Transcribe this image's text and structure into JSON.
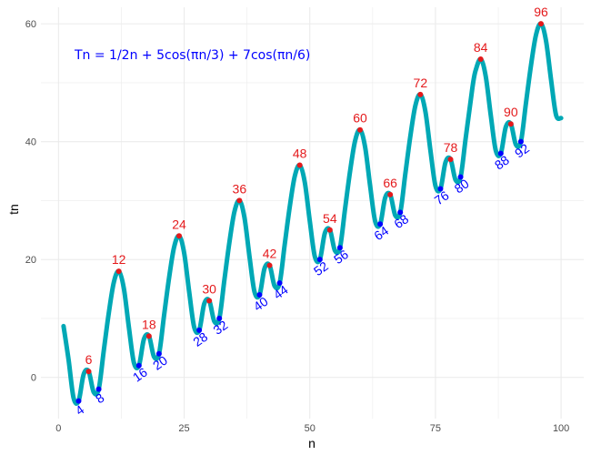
{
  "chart_data": {
    "type": "line",
    "title": "",
    "formula_text": "Tn = 1/2n + 5cos(πn/3) + 7cos(πn/6)",
    "xlabel": "n",
    "ylabel": "tn",
    "xlim": [
      1,
      100
    ],
    "ylim": [
      -5,
      60
    ],
    "x_ticks": [
      0,
      25,
      50,
      75,
      100
    ],
    "y_ticks": [
      0,
      20,
      40,
      60
    ],
    "grid": true,
    "colors": {
      "line": "#00A8B5",
      "max": "#E41A1C",
      "min": "#0000FF",
      "formula": "#0000FF",
      "grid": "#EBEBEB"
    },
    "series": [
      {
        "x": [
          1,
          2,
          3,
          4,
          5,
          6,
          7,
          8,
          9,
          10,
          11,
          12,
          13,
          14,
          15,
          16,
          17,
          18,
          19,
          20,
          21,
          22,
          23,
          24,
          25,
          26,
          27,
          28,
          29,
          30,
          31,
          32,
          33,
          34,
          35,
          36,
          37,
          38,
          39,
          40,
          41,
          42,
          43,
          44,
          45,
          46,
          47,
          48,
          49,
          50,
          51,
          52,
          53,
          54,
          55,
          56,
          57,
          58,
          59,
          60,
          61,
          62,
          63,
          64,
          65,
          66,
          67,
          68,
          69,
          70,
          71,
          72,
          73,
          74,
          75,
          76,
          77,
          78,
          79,
          80,
          81,
          82,
          82.5,
          83,
          84,
          85,
          86,
          87,
          88,
          89,
          90,
          91,
          92,
          93,
          94,
          95,
          96,
          97,
          98,
          99,
          100
        ],
        "y": [
          8.7,
          3.0,
          -3.5,
          -4.0,
          0.5,
          1.0,
          -2.5,
          -2.0,
          4.5,
          10.9,
          16.1,
          18.0,
          15.1,
          8.5,
          2.5,
          2.0,
          6.5,
          7.0,
          3.5,
          4.0,
          10.5,
          16.9,
          22.1,
          24.0,
          21.1,
          14.5,
          8.5,
          8.0,
          12.5,
          13.0,
          9.5,
          10.0,
          16.5,
          22.9,
          28.1,
          30.0,
          27.1,
          20.5,
          14.5,
          14.0,
          18.5,
          19.0,
          15.5,
          16.0,
          22.5,
          28.9,
          34.1,
          36.0,
          33.1,
          26.5,
          20.5,
          20.0,
          24.5,
          25.0,
          21.5,
          22.0,
          28.5,
          34.9,
          40.1,
          42.0,
          39.1,
          32.5,
          26.5,
          26.0,
          30.5,
          31.0,
          27.5,
          28.0,
          34.5,
          40.9,
          46.1,
          48.0,
          45.1,
          38.5,
          32.5,
          32.0,
          36.5,
          37.0,
          33.5,
          34.0,
          40.5,
          46.9,
          50.0,
          52.1,
          54.0,
          51.1,
          44.5,
          38.5,
          38.0,
          42.5,
          43.0,
          39.5,
          40.0,
          46.5,
          52.9,
          58.1,
          60.0,
          57.1,
          50.5,
          44.5,
          44.0
        ]
      }
    ],
    "maxima": [
      {
        "n": 6,
        "y": 1.0,
        "label": "6"
      },
      {
        "n": 12,
        "y": 18.0,
        "label": "12"
      },
      {
        "n": 18,
        "y": 7.0,
        "label": "18"
      },
      {
        "n": 24,
        "y": 24.0,
        "label": "24"
      },
      {
        "n": 30,
        "y": 13.0,
        "label": "30"
      },
      {
        "n": 36,
        "y": 30.0,
        "label": "36"
      },
      {
        "n": 42,
        "y": 19.0,
        "label": "42"
      },
      {
        "n": 48,
        "y": 36.0,
        "label": "48"
      },
      {
        "n": 54,
        "y": 25.0,
        "label": "54"
      },
      {
        "n": 60,
        "y": 42.0,
        "label": "60"
      },
      {
        "n": 66,
        "y": 31.0,
        "label": "66"
      },
      {
        "n": 72,
        "y": 48.0,
        "label": "72"
      },
      {
        "n": 78,
        "y": 37.0,
        "label": "78"
      },
      {
        "n": 84,
        "y": 54.0,
        "label": "84"
      },
      {
        "n": 90,
        "y": 43.0,
        "label": "90"
      },
      {
        "n": 96,
        "y": 60.0,
        "label": "96"
      }
    ],
    "minima": [
      {
        "n": 4,
        "y": -4.0,
        "label": "4"
      },
      {
        "n": 8,
        "y": -2.0,
        "label": "8"
      },
      {
        "n": 16,
        "y": 2.0,
        "label": "16"
      },
      {
        "n": 20,
        "y": 4.0,
        "label": "20"
      },
      {
        "n": 28,
        "y": 8.0,
        "label": "28"
      },
      {
        "n": 32,
        "y": 10.0,
        "label": "32"
      },
      {
        "n": 40,
        "y": 14.0,
        "label": "40"
      },
      {
        "n": 44,
        "y": 16.0,
        "label": "44"
      },
      {
        "n": 52,
        "y": 20.0,
        "label": "52"
      },
      {
        "n": 56,
        "y": 22.0,
        "label": "56"
      },
      {
        "n": 64,
        "y": 26.0,
        "label": "64"
      },
      {
        "n": 68,
        "y": 28.0,
        "label": "68"
      },
      {
        "n": 76,
        "y": 32.0,
        "label": "76"
      },
      {
        "n": 80,
        "y": 34.0,
        "label": "80"
      },
      {
        "n": 88,
        "y": 38.0,
        "label": "88"
      },
      {
        "n": 92,
        "y": 40.0,
        "label": "92"
      }
    ]
  }
}
